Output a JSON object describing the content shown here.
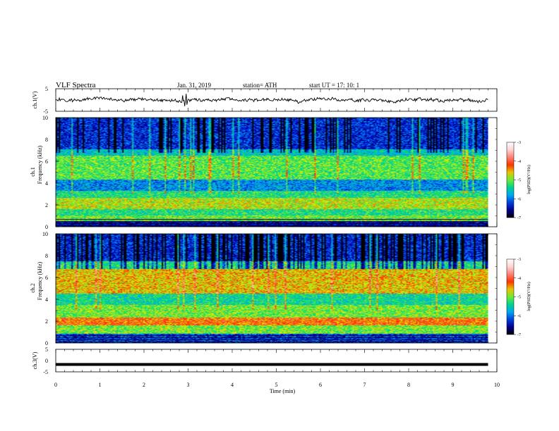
{
  "header": {
    "title": "VLF  Spectra",
    "date": "Jan. 31, 2019",
    "station": "station= ATH",
    "start": "start  UT  =    17: 10: 1"
  },
  "chart_data": [
    {
      "type": "line",
      "panel": "ch1-waveform",
      "ylabel": "ch.1(V)",
      "ylim": [
        -5,
        5
      ],
      "yticks": [
        "5",
        "-5"
      ],
      "xlim": [
        0,
        10
      ],
      "note_values": "noisy waveform centred near 0 V, amplitude about ±1 V with occasional spikes near t≈2.7–3 min"
    },
    {
      "type": "heatmap",
      "panel": "ch1-spectrogram",
      "ylabel": "ch.1\nFrequency  (kHz)",
      "ylabel_line1": "ch.1",
      "ylabel_line2": "Frequency  (kHz)",
      "ylim": [
        0,
        10
      ],
      "yticks": [
        "0",
        "2",
        "4",
        "6",
        "8",
        "10"
      ],
      "xlim": [
        0,
        10
      ],
      "data_end_min": 9.8,
      "colorbar": {
        "label": "log(PSD)(V²/Hz)",
        "range": [
          -7,
          -3
        ],
        "ticks": [
          "-3",
          "-4",
          "-5",
          "-6",
          "-7"
        ]
      },
      "bands_khz": [
        {
          "from": 0.0,
          "to": 0.5,
          "level": -6.5
        },
        {
          "from": 0.5,
          "to": 1.0,
          "level": -5.0
        },
        {
          "from": 1.0,
          "to": 1.6,
          "level": -5.3
        },
        {
          "from": 1.6,
          "to": 2.6,
          "level": -4.8
        },
        {
          "from": 2.6,
          "to": 3.3,
          "level": -5.3
        },
        {
          "from": 3.3,
          "to": 4.3,
          "level": -5.9
        },
        {
          "from": 4.3,
          "to": 6.5,
          "level": -5.1
        },
        {
          "from": 6.5,
          "to": 7.1,
          "level": -5.6
        },
        {
          "from": 7.1,
          "to": 10.0,
          "level": -6.3
        }
      ]
    },
    {
      "type": "heatmap",
      "panel": "ch2-spectrogram",
      "ylabel_line1": "ch.2",
      "ylabel_line2": "Frequency  (kHz)",
      "ylim": [
        0,
        10
      ],
      "yticks": [
        "0",
        "2",
        "4",
        "6",
        "8",
        "10"
      ],
      "xlim": [
        0,
        10
      ],
      "data_end_min": 9.8,
      "colorbar": {
        "label": "log(PSD)(V²/Hz)",
        "range": [
          -7,
          -3
        ],
        "ticks": [
          "-3",
          "-4",
          "-5",
          "-6",
          "-7"
        ]
      },
      "bands_khz": [
        {
          "from": 0.0,
          "to": 0.8,
          "level": -6.2
        },
        {
          "from": 0.8,
          "to": 1.6,
          "level": -5.0
        },
        {
          "from": 1.6,
          "to": 2.3,
          "level": -4.3
        },
        {
          "from": 2.3,
          "to": 3.5,
          "level": -5.0
        },
        {
          "from": 3.5,
          "to": 4.5,
          "level": -5.4
        },
        {
          "from": 4.5,
          "to": 6.8,
          "level": -4.6
        },
        {
          "from": 6.8,
          "to": 7.5,
          "level": -5.3
        },
        {
          "from": 7.5,
          "to": 10.0,
          "level": -6.3
        }
      ]
    },
    {
      "type": "line",
      "panel": "ch3-waveform",
      "ylabel": "ch.3(V)",
      "ylim": [
        -5,
        5
      ],
      "yticks": [
        "5",
        "0",
        "-5"
      ],
      "xlim": [
        0,
        10
      ],
      "xlabel": "Time  (min)",
      "xticks": [
        "0",
        "1",
        "2",
        "3",
        "4",
        "5",
        "6",
        "7",
        "8",
        "9",
        "10"
      ],
      "constant_value_v": -1.7
    }
  ],
  "colors": {
    "colormap": [
      "#000000",
      "#0000c8",
      "#00a0ff",
      "#00e070",
      "#e0f000",
      "#ff2000",
      "#ffc0c0",
      "#ffffff"
    ],
    "trace": "#000000"
  }
}
